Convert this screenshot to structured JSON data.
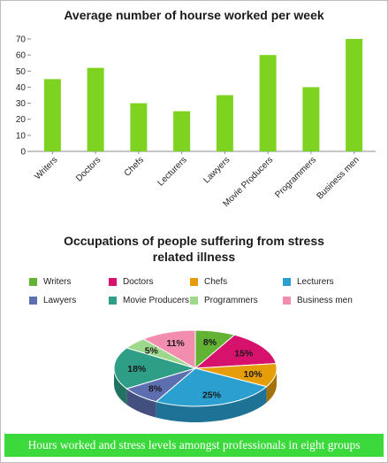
{
  "caption": "Hours worked and stress levels amongst professionals in eight groups",
  "chart_data": [
    {
      "type": "bar",
      "title": "Average number of hourse worked per week",
      "xlabel": "",
      "ylabel": "",
      "categories": [
        "Writers",
        "Doctors",
        "Chefs",
        "Lecturers",
        "Lawyers",
        "Movie Producers",
        "Programmers",
        "Business men"
      ],
      "values": [
        45,
        52,
        30,
        25,
        35,
        60,
        40,
        70
      ],
      "ylim": [
        0,
        70
      ],
      "yticks": [
        0,
        10,
        20,
        30,
        40,
        50,
        60,
        70
      ],
      "bar_color": "#7ed321",
      "grid": false,
      "legend": "none"
    },
    {
      "type": "pie",
      "title_lines": [
        "Occupations of people suffering from stress",
        "related illness"
      ],
      "categories": [
        "Writers",
        "Doctors",
        "Chefs",
        "Lecturers",
        "Lawyers",
        "Movie Producers",
        "Programmers",
        "Business men"
      ],
      "values": [
        8,
        15,
        10,
        25,
        8,
        18,
        5,
        11
      ],
      "labels": [
        "8%",
        "15%",
        "10%",
        "25%",
        "8%",
        "18%",
        "5%",
        "11%"
      ],
      "colors": [
        "#62b234",
        "#d6126d",
        "#e59e0a",
        "#2a9fd0",
        "#5d6fb0",
        "#2e9e86",
        "#9ed88a",
        "#f28db0"
      ],
      "style": "3d",
      "legend": "top"
    }
  ]
}
